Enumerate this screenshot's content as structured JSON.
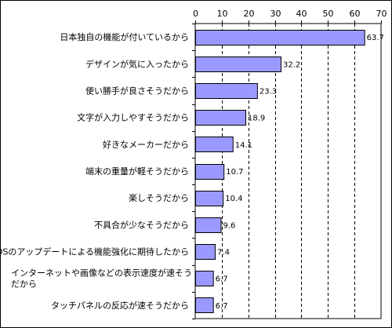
{
  "chart_data": {
    "type": "bar",
    "orientation": "horizontal",
    "title": "",
    "xlabel": "",
    "ylabel": "",
    "xlim": [
      0,
      70
    ],
    "xticks": [
      0,
      10,
      20,
      30,
      40,
      50,
      60,
      70
    ],
    "x_axis_position": "top",
    "grid": "vertical dashed",
    "legend": "none",
    "colors": {
      "bar_fill": "#9999ff",
      "bar_stroke": "#000000",
      "grid": "#000000"
    },
    "categories": [
      [
        "日本独自の機能が付いているから"
      ],
      [
        "デザインが気に入ったから"
      ],
      [
        "使い勝手が良さそうだから"
      ],
      [
        "文字が入力しやすそうだから"
      ],
      [
        "好きなメーカーだから"
      ],
      [
        "端末の重量が軽そうだから"
      ],
      [
        "楽しそうだから"
      ],
      [
        "不具合が少なそうだから"
      ],
      [
        "OSのアップデートによる機能強化に期待したから"
      ],
      [
        "インターネットや画像などの表示速度が速そう",
        "だから"
      ],
      [
        "タッチパネルの反応が速そうだから"
      ]
    ],
    "values": [
      63.7,
      32.2,
      23.3,
      18.9,
      14.1,
      10.7,
      10.4,
      9.6,
      7.4,
      6.7,
      6.7
    ]
  }
}
